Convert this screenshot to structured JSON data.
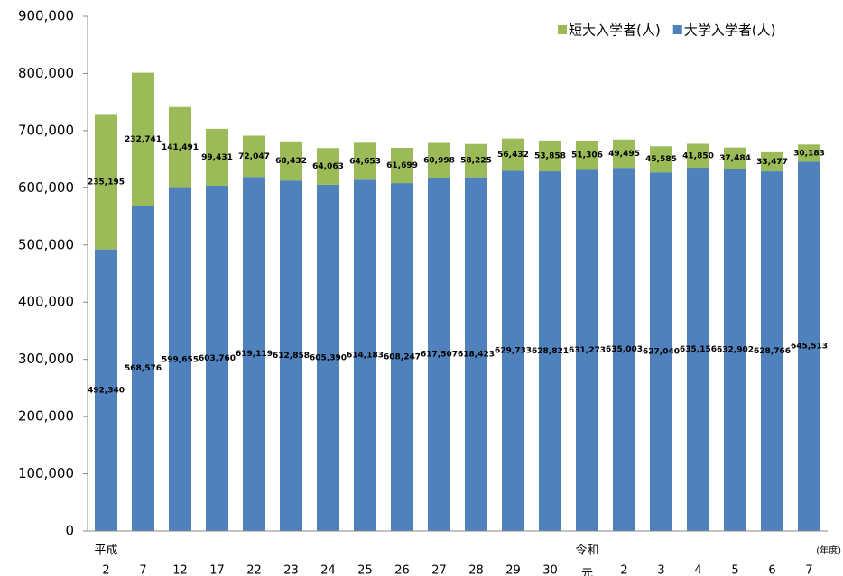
{
  "chart_data": {
    "type": "stacked_bar",
    "categories": [
      "2",
      "7",
      "12",
      "17",
      "22",
      "23",
      "24",
      "25",
      "26",
      "27",
      "28",
      "29",
      "30",
      "元",
      "2",
      "3",
      "4",
      "5",
      "6",
      "7"
    ],
    "eras": [
      "平成",
      null,
      null,
      null,
      null,
      null,
      null,
      null,
      null,
      null,
      null,
      null,
      null,
      "令和",
      null,
      null,
      null,
      null,
      null,
      null
    ],
    "x_label": "(年度)",
    "series": [
      {
        "name": "大学入学者(人)",
        "color": "#4f81bd",
        "values": [
          492340,
          568576,
          599655,
          603760,
          619119,
          612858,
          605390,
          614183,
          608247,
          617507,
          618423,
          629733,
          628821,
          631273,
          635003,
          627040,
          635156,
          632902,
          628766,
          645513
        ],
        "value_labels": [
          "492,340",
          "568,576",
          "599,655",
          "603,760",
          "619,119",
          "612,858",
          "605,390",
          "614,183",
          "608,247",
          "617,507",
          "618,423",
          "629,733",
          "628,821",
          "631,273",
          "635,003",
          "627,040",
          "635,156",
          "632,902",
          "628,766",
          "645,513"
        ]
      },
      {
        "name": "短大入学者(人)",
        "color": "#9bbb59",
        "values": [
          235195,
          232741,
          141491,
          99431,
          72047,
          68432,
          64063,
          64653,
          61699,
          60998,
          58225,
          56432,
          53858,
          51306,
          49495,
          45585,
          41850,
          37484,
          33477,
          30183
        ],
        "value_labels": [
          "235,195",
          "232,741",
          "141,491",
          "99,431",
          "72,047",
          "68,432",
          "64,063",
          "64,653",
          "61,699",
          "60,998",
          "58,225",
          "56,432",
          "53,858",
          "51,306",
          "49,495",
          "45,585",
          "41,850",
          "37,484",
          "33,477",
          "30,183"
        ]
      }
    ],
    "ylim": [
      0,
      900000
    ],
    "yticks": [
      0,
      {
        "value": 100000,
        "label": "100,000"
      },
      {
        "value": 200000,
        "label": "200,000"
      },
      {
        "value": 300000,
        "label": "300,000"
      },
      {
        "value": 400000,
        "label": "400,000"
      },
      {
        "value": 500000,
        "label": "500,000"
      },
      {
        "value": 600000,
        "label": "600,000"
      },
      {
        "value": 700000,
        "label": "700,000"
      },
      {
        "value": 800000,
        "label": "800,000"
      },
      {
        "value": 900000,
        "label": "900,000"
      }
    ],
    "legend": "top-right",
    "grid": false
  }
}
